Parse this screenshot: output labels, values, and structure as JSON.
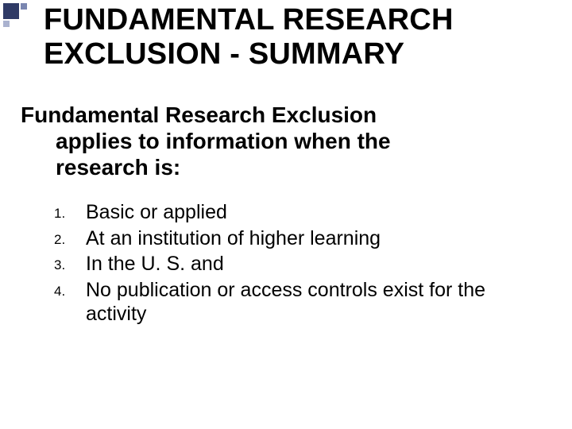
{
  "deco": {
    "big_color": "#2f3a66",
    "small1_color": "#7a86b0",
    "small2_color": "#aab2cf"
  },
  "title": "FUNDAMENTAL RESEARCH EXCLUSION - SUMMARY",
  "subtitle_line1": "Fundamental Research Exclusion",
  "subtitle_line2": "applies to information when the",
  "subtitle_line3": "research is:",
  "list": [
    {
      "num": "1.",
      "text": "Basic or applied"
    },
    {
      "num": "2.",
      "text": "At an institution of higher learning"
    },
    {
      "num": "3.",
      "text": "In the U. S. and"
    },
    {
      "num": "4.",
      "text": "No publication or access controls exist for the activity"
    }
  ],
  "typography": {
    "title_fontsize": 38,
    "subtitle_fontsize": 28,
    "list_text_fontsize": 25,
    "list_num_fontsize": 17,
    "font_family": "Arial",
    "text_color": "#000000",
    "background_color": "#ffffff"
  }
}
